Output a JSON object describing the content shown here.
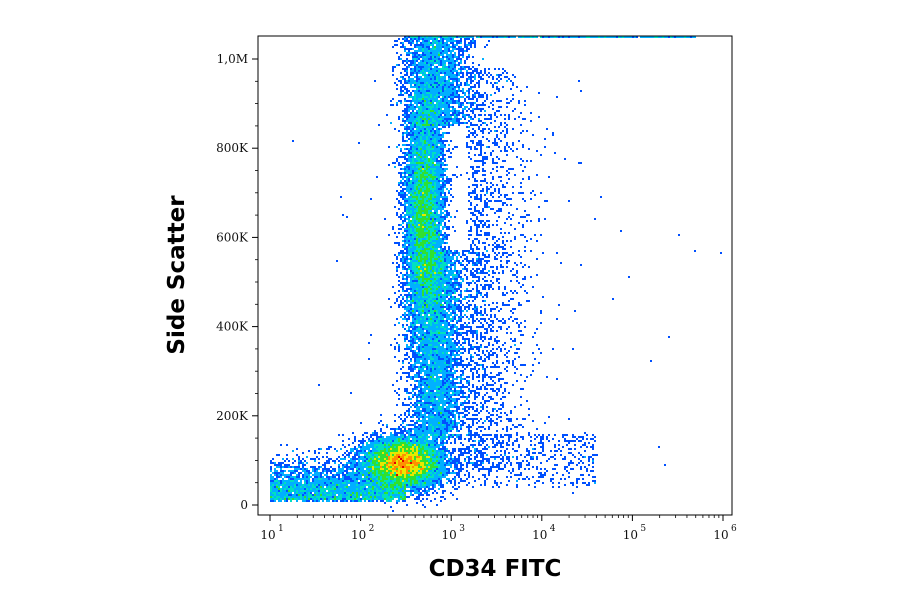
{
  "chart_data": {
    "type": "scatter",
    "subtype": "flow-cytometry density dot plot",
    "xlabel": "CD34 FITC",
    "ylabel": "Side Scatter",
    "x_scale": "log",
    "xlim": [
      7,
      1300000
    ],
    "ylim": [
      -10000,
      1050000
    ],
    "x_ticks": [
      {
        "base": "10",
        "exp": "1",
        "value": 10
      },
      {
        "base": "10",
        "exp": "2",
        "value": 100
      },
      {
        "base": "10",
        "exp": "3",
        "value": 1000
      },
      {
        "base": "10",
        "exp": "4",
        "value": 10000
      },
      {
        "base": "10",
        "exp": "5",
        "value": 100000
      },
      {
        "base": "10",
        "exp": "6",
        "value": 1000000
      }
    ],
    "y_ticks": [
      {
        "label": "0",
        "value": 0
      },
      {
        "label": "200K",
        "value": 200000
      },
      {
        "label": "400K",
        "value": 400000
      },
      {
        "label": "600K",
        "value": 600000
      },
      {
        "label": "800K",
        "value": 800000
      },
      {
        "label": "1,0M",
        "value": 1000000
      }
    ],
    "grid": false,
    "legend": "none",
    "colormap": [
      "#1a1aa8",
      "#0050ff",
      "#00b0ff",
      "#00e0c0",
      "#30e030",
      "#e8e800",
      "#ff9000",
      "#e00000"
    ],
    "populations": [
      {
        "id": "lymphocytes",
        "x_center": 300,
        "y_center": 95000,
        "density": "very high"
      },
      {
        "id": "granulocytes",
        "x_center": 500,
        "y_center": 650000,
        "density": "high"
      },
      {
        "id": "monocytes",
        "x_center": 800,
        "y_center": 300000,
        "density": "medium"
      }
    ]
  }
}
